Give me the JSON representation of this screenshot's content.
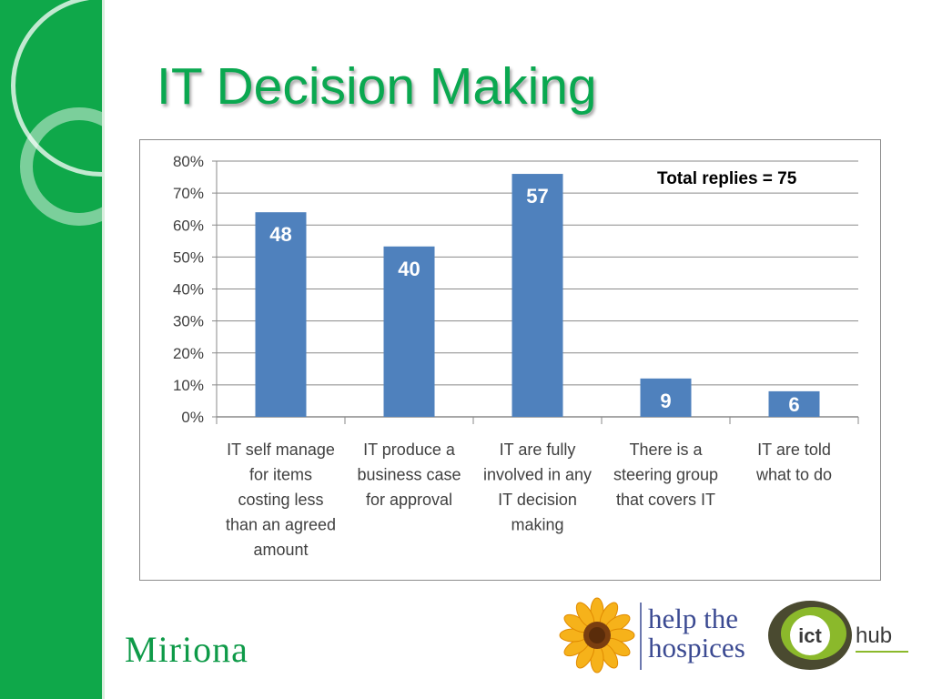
{
  "slide": {
    "title": "IT Decision Making",
    "total_replies": "Total replies = 75",
    "brand": "Miriona",
    "logo_help_the_hospices": [
      "help the",
      "hospices"
    ],
    "logo_ict": {
      "left": "ict",
      "right": "hub"
    },
    "colors": {
      "green": "#0fa84a",
      "title_green": "#0aa850",
      "bar_blue": "#4f81bd",
      "hospice_blue": "#3b4a92"
    }
  },
  "chart_data": {
    "type": "bar",
    "categories": [
      "IT self manage for items costing less than an agreed amount",
      "IT produce a business case for approval",
      "IT are fully involved in any IT decision making",
      "There is a steering group that covers IT",
      "IT are told what to do"
    ],
    "category_lines": [
      [
        "IT self manage",
        "for items",
        "costing less",
        "than an agreed",
        "amount"
      ],
      [
        "IT produce a",
        "business case",
        "for approval"
      ],
      [
        "IT are fully",
        "involved in any",
        "IT decision",
        "making"
      ],
      [
        "There is a",
        "steering group",
        "that covers IT"
      ],
      [
        "IT are told",
        "what to do"
      ]
    ],
    "values": [
      64,
      53.3,
      76,
      12,
      8
    ],
    "data_labels": [
      "48",
      "40",
      "57",
      "9",
      "6"
    ],
    "y_ticks": [
      "0%",
      "10%",
      "20%",
      "30%",
      "40%",
      "50%",
      "60%",
      "70%",
      "80%"
    ],
    "ylim": [
      0,
      80
    ],
    "ytick_step": 10,
    "grid": true,
    "legend": false,
    "title": "",
    "xlabel": "",
    "ylabel": ""
  }
}
